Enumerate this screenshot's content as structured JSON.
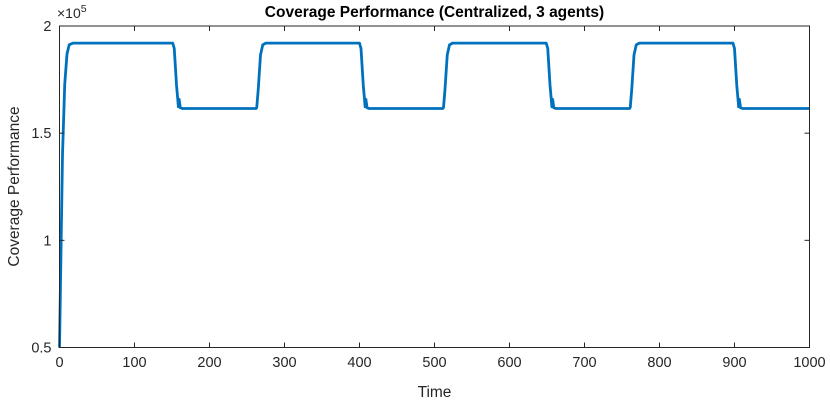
{
  "page": {
    "background_color": "#ffffff"
  },
  "chart_data": {
    "type": "line",
    "title": "Coverage Performance (Centralized, 3 agents)",
    "xlabel": "Time",
    "ylabel": "Coverage Performance",
    "y_exponent_base": "×10",
    "y_exponent_power": "5",
    "xlim": [
      0,
      1000
    ],
    "ylim": [
      50000,
      200000
    ],
    "x_ticks": [
      0,
      100,
      200,
      300,
      400,
      500,
      600,
      700,
      800,
      900,
      1000
    ],
    "x_tick_labels": [
      "0",
      "100",
      "200",
      "300",
      "400",
      "500",
      "600",
      "700",
      "800",
      "900",
      "1000"
    ],
    "y_ticks": [
      50000,
      100000,
      150000,
      200000
    ],
    "y_tick_labels": [
      "0.5",
      "1",
      "1.5",
      "2"
    ],
    "grid": false,
    "legend_position": "none",
    "line_color": "#0072BD",
    "axis_color": "#262626",
    "series": [
      {
        "name": "coverage-performance",
        "points": [
          [
            0,
            50000
          ],
          [
            2,
            95000
          ],
          [
            4,
            140000
          ],
          [
            7,
            173000
          ],
          [
            10,
            187000
          ],
          [
            13,
            191300
          ],
          [
            18,
            192000
          ],
          [
            151,
            192000
          ],
          [
            153,
            189500
          ],
          [
            156,
            172500
          ],
          [
            157.5,
            166500
          ],
          [
            158.5,
            162300
          ],
          [
            159.5,
            165800
          ],
          [
            161,
            161900
          ],
          [
            164,
            161500
          ],
          [
            262,
            161500
          ],
          [
            263,
            162000
          ],
          [
            265,
            170500
          ],
          [
            268,
            186500
          ],
          [
            271,
            191200
          ],
          [
            275,
            192000
          ],
          [
            400,
            192000
          ],
          [
            402,
            189500
          ],
          [
            405,
            172500
          ],
          [
            406.5,
            166500
          ],
          [
            407.5,
            162300
          ],
          [
            408.5,
            165800
          ],
          [
            410,
            161900
          ],
          [
            413,
            161500
          ],
          [
            511,
            161500
          ],
          [
            512,
            162000
          ],
          [
            514,
            170500
          ],
          [
            517,
            186500
          ],
          [
            520,
            191200
          ],
          [
            524,
            192000
          ],
          [
            649,
            192000
          ],
          [
            651,
            189500
          ],
          [
            654,
            172500
          ],
          [
            655.5,
            166500
          ],
          [
            656.5,
            162300
          ],
          [
            657.5,
            165800
          ],
          [
            659,
            161900
          ],
          [
            662,
            161500
          ],
          [
            760,
            161500
          ],
          [
            761,
            162000
          ],
          [
            763,
            170500
          ],
          [
            766,
            186500
          ],
          [
            769,
            191200
          ],
          [
            773,
            192000
          ],
          [
            898,
            192000
          ],
          [
            900,
            189500
          ],
          [
            903,
            172500
          ],
          [
            904.5,
            166500
          ],
          [
            905.5,
            162300
          ],
          [
            906.5,
            165800
          ],
          [
            908,
            161900
          ],
          [
            911,
            161500
          ],
          [
            1000,
            161500
          ]
        ]
      }
    ]
  }
}
